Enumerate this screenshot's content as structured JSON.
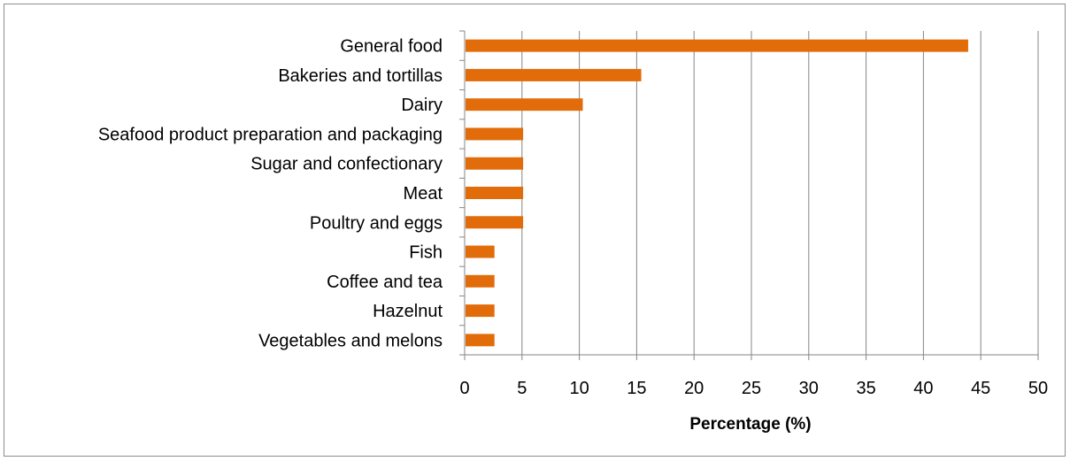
{
  "chart_data": {
    "type": "bar",
    "orientation": "horizontal",
    "title": "",
    "xlabel": "Percentage (%)",
    "ylabel": "",
    "categories": [
      "General food",
      "Bakeries and tortillas",
      "Dairy",
      "Seafood product preparation and packaging",
      "Sugar and confectionary",
      "Meat",
      "Poultry and eggs",
      "Fish",
      "Coffee and tea",
      "Hazelnut",
      "Vegetables and melons"
    ],
    "values": [
      43.9,
      15.4,
      10.3,
      5.1,
      5.1,
      5.1,
      5.1,
      2.6,
      2.6,
      2.6,
      2.6
    ],
    "xlim": [
      0,
      50
    ],
    "xticks": [
      0,
      5,
      10,
      15,
      20,
      25,
      30,
      35,
      40,
      45,
      50
    ],
    "grid": "vertical",
    "legend": "none",
    "bar_color": "#e36c0a"
  }
}
